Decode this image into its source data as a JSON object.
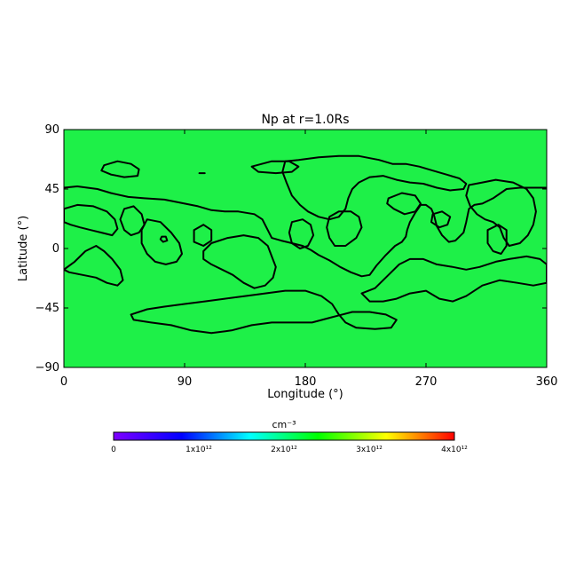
{
  "chart_data": {
    "type": "heatmap",
    "title": "Np at r=1.0Rs",
    "xlabel": "Longitude (°)",
    "ylabel": "Latitude (°)",
    "xlim": [
      0,
      360
    ],
    "ylim": [
      -90,
      90
    ],
    "x_ticks": [
      0,
      90,
      180,
      270,
      360
    ],
    "y_ticks": [
      -90,
      -45,
      0,
      45,
      90
    ],
    "field_color": "#1ef048",
    "contour_color": "#000000",
    "contours": [
      {
        "name": "north-belt",
        "closed": false,
        "points": [
          [
            0,
            46
          ],
          [
            10,
            47
          ],
          [
            25,
            45
          ],
          [
            35,
            42
          ],
          [
            48,
            39
          ],
          [
            60,
            38
          ],
          [
            75,
            37
          ],
          [
            90,
            34
          ],
          [
            100,
            32
          ],
          [
            110,
            29
          ],
          [
            120,
            28
          ],
          [
            130,
            28
          ],
          [
            142,
            26
          ],
          [
            148,
            22
          ],
          [
            152,
            14
          ],
          [
            155,
            8
          ],
          [
            162,
            6
          ],
          [
            170,
            4
          ],
          [
            178,
            2
          ],
          [
            184,
            -1
          ],
          [
            190,
            -5
          ],
          [
            198,
            -9
          ],
          [
            206,
            -14
          ],
          [
            214,
            -18
          ],
          [
            222,
            -21
          ],
          [
            228,
            -20
          ],
          [
            233,
            -13
          ],
          [
            240,
            -5
          ],
          [
            247,
            2
          ],
          [
            252,
            5
          ],
          [
            255,
            9
          ],
          [
            256,
            14
          ],
          [
            258,
            20
          ],
          [
            262,
            27
          ],
          [
            266,
            33
          ],
          [
            270,
            33
          ],
          [
            274,
            30
          ],
          [
            276,
            25
          ],
          [
            278,
            17
          ],
          [
            282,
            10
          ],
          [
            287,
            5
          ],
          [
            292,
            6
          ],
          [
            298,
            12
          ],
          [
            300,
            20
          ],
          [
            302,
            30
          ],
          [
            306,
            33
          ],
          [
            312,
            34
          ],
          [
            320,
            38
          ],
          [
            330,
            45
          ],
          [
            340,
            46
          ],
          [
            350,
            46
          ],
          [
            360,
            46
          ]
        ]
      },
      {
        "name": "north-cap",
        "closed": true,
        "points": [
          [
            165,
            66
          ],
          [
            175,
            67
          ],
          [
            190,
            69
          ],
          [
            205,
            70
          ],
          [
            220,
            70
          ],
          [
            235,
            67
          ],
          [
            245,
            64
          ],
          [
            255,
            64
          ],
          [
            265,
            62
          ],
          [
            275,
            59
          ],
          [
            285,
            56
          ],
          [
            295,
            53
          ],
          [
            300,
            49
          ],
          [
            298,
            45
          ],
          [
            288,
            44
          ],
          [
            278,
            46
          ],
          [
            268,
            49
          ],
          [
            258,
            50
          ],
          [
            248,
            52
          ],
          [
            238,
            55
          ],
          [
            228,
            54
          ],
          [
            220,
            50
          ],
          [
            215,
            45
          ],
          [
            212,
            38
          ],
          [
            210,
            30
          ],
          [
            205,
            24
          ],
          [
            198,
            22
          ],
          [
            190,
            24
          ],
          [
            182,
            28
          ],
          [
            176,
            33
          ],
          [
            170,
            40
          ],
          [
            166,
            50
          ],
          [
            163,
            58
          ]
        ]
      },
      {
        "name": "ne-loop",
        "closed": true,
        "points": [
          [
            302,
            48
          ],
          [
            312,
            50
          ],
          [
            322,
            52
          ],
          [
            335,
            50
          ],
          [
            345,
            45
          ],
          [
            350,
            38
          ],
          [
            352,
            28
          ],
          [
            350,
            18
          ],
          [
            346,
            10
          ],
          [
            340,
            4
          ],
          [
            332,
            2
          ],
          [
            328,
            8
          ],
          [
            325,
            16
          ],
          [
            320,
            20
          ],
          [
            314,
            22
          ],
          [
            308,
            26
          ],
          [
            303,
            32
          ],
          [
            300,
            40
          ]
        ]
      },
      {
        "name": "nw-blob",
        "closed": true,
        "points": [
          [
            30,
            63
          ],
          [
            40,
            66
          ],
          [
            50,
            64
          ],
          [
            56,
            60
          ],
          [
            55,
            55
          ],
          [
            45,
            54
          ],
          [
            35,
            56
          ],
          [
            28,
            59
          ]
        ]
      },
      {
        "name": "ne-wedge",
        "closed": true,
        "points": [
          [
            140,
            62
          ],
          [
            155,
            66
          ],
          [
            168,
            66
          ],
          [
            175,
            62
          ],
          [
            170,
            58
          ],
          [
            158,
            57
          ],
          [
            145,
            58
          ]
        ]
      },
      {
        "name": "w-cluster-a",
        "closed": true,
        "points": [
          [
            0,
            30
          ],
          [
            10,
            33
          ],
          [
            22,
            32
          ],
          [
            32,
            28
          ],
          [
            38,
            22
          ],
          [
            40,
            15
          ],
          [
            36,
            10
          ],
          [
            28,
            12
          ],
          [
            20,
            14
          ],
          [
            12,
            16
          ],
          [
            5,
            18
          ],
          [
            0,
            20
          ]
        ]
      },
      {
        "name": "w-cluster-b",
        "closed": true,
        "points": [
          [
            45,
            30
          ],
          [
            52,
            32
          ],
          [
            58,
            26
          ],
          [
            60,
            18
          ],
          [
            56,
            12
          ],
          [
            50,
            10
          ],
          [
            45,
            14
          ],
          [
            42,
            22
          ]
        ]
      },
      {
        "name": "w-cluster-c",
        "closed": true,
        "points": [
          [
            62,
            22
          ],
          [
            72,
            20
          ],
          [
            80,
            12
          ],
          [
            86,
            4
          ],
          [
            88,
            -4
          ],
          [
            84,
            -10
          ],
          [
            76,
            -12
          ],
          [
            68,
            -10
          ],
          [
            62,
            -4
          ],
          [
            58,
            4
          ],
          [
            58,
            14
          ]
        ]
      },
      {
        "name": "w-blob-d",
        "closed": true,
        "points": [
          [
            97,
            14
          ],
          [
            104,
            18
          ],
          [
            110,
            14
          ],
          [
            110,
            6
          ],
          [
            104,
            2
          ],
          [
            97,
            5
          ]
        ]
      },
      {
        "name": "sw-loop",
        "closed": true,
        "points": [
          [
            0,
            -16
          ],
          [
            8,
            -10
          ],
          [
            16,
            -2
          ],
          [
            24,
            2
          ],
          [
            30,
            -2
          ],
          [
            36,
            -8
          ],
          [
            42,
            -16
          ],
          [
            44,
            -24
          ],
          [
            40,
            -28
          ],
          [
            32,
            -26
          ],
          [
            24,
            -22
          ],
          [
            14,
            -20
          ],
          [
            4,
            -18
          ]
        ]
      },
      {
        "name": "center-lobe",
        "closed": true,
        "points": [
          [
            110,
            4
          ],
          [
            122,
            8
          ],
          [
            134,
            10
          ],
          [
            145,
            8
          ],
          [
            152,
            2
          ],
          [
            155,
            -6
          ],
          [
            158,
            -14
          ],
          [
            156,
            -22
          ],
          [
            150,
            -28
          ],
          [
            142,
            -30
          ],
          [
            134,
            -26
          ],
          [
            126,
            -20
          ],
          [
            118,
            -16
          ],
          [
            110,
            -12
          ],
          [
            104,
            -8
          ],
          [
            104,
            -2
          ]
        ]
      },
      {
        "name": "center-blob",
        "closed": true,
        "points": [
          [
            170,
            20
          ],
          [
            178,
            22
          ],
          [
            184,
            18
          ],
          [
            186,
            10
          ],
          [
            182,
            2
          ],
          [
            176,
            0
          ],
          [
            170,
            4
          ],
          [
            168,
            12
          ]
        ]
      },
      {
        "name": "mid-blob",
        "closed": true,
        "points": [
          [
            198,
            24
          ],
          [
            205,
            28
          ],
          [
            214,
            28
          ],
          [
            220,
            24
          ],
          [
            222,
            16
          ],
          [
            218,
            8
          ],
          [
            210,
            2
          ],
          [
            202,
            2
          ],
          [
            198,
            8
          ],
          [
            196,
            16
          ]
        ]
      },
      {
        "name": "e-loop-a",
        "closed": true,
        "points": [
          [
            242,
            38
          ],
          [
            252,
            42
          ],
          [
            262,
            40
          ],
          [
            266,
            34
          ],
          [
            262,
            28
          ],
          [
            254,
            26
          ],
          [
            246,
            30
          ],
          [
            241,
            34
          ]
        ]
      },
      {
        "name": "e-loop-b",
        "closed": true,
        "points": [
          [
            275,
            26
          ],
          [
            282,
            28
          ],
          [
            288,
            24
          ],
          [
            286,
            18
          ],
          [
            280,
            16
          ],
          [
            274,
            20
          ]
        ]
      },
      {
        "name": "e-blob-c",
        "closed": true,
        "points": [
          [
            316,
            14
          ],
          [
            324,
            18
          ],
          [
            330,
            14
          ],
          [
            330,
            2
          ],
          [
            326,
            -4
          ],
          [
            320,
            -2
          ],
          [
            316,
            4
          ]
        ]
      },
      {
        "name": "se-band",
        "closed": true,
        "points": [
          [
            222,
            -34
          ],
          [
            232,
            -30
          ],
          [
            242,
            -20
          ],
          [
            250,
            -12
          ],
          [
            258,
            -8
          ],
          [
            268,
            -8
          ],
          [
            278,
            -12
          ],
          [
            290,
            -14
          ],
          [
            300,
            -16
          ],
          [
            310,
            -14
          ],
          [
            322,
            -10
          ],
          [
            332,
            -8
          ],
          [
            345,
            -6
          ],
          [
            355,
            -8
          ],
          [
            360,
            -12
          ],
          [
            360,
            -26
          ],
          [
            350,
            -28
          ],
          [
            338,
            -26
          ],
          [
            325,
            -24
          ],
          [
            312,
            -28
          ],
          [
            300,
            -36
          ],
          [
            290,
            -40
          ],
          [
            280,
            -38
          ],
          [
            270,
            -32
          ],
          [
            258,
            -34
          ],
          [
            248,
            -38
          ],
          [
            238,
            -40
          ],
          [
            228,
            -40
          ]
        ]
      },
      {
        "name": "south-belt",
        "closed": true,
        "points": [
          [
            50,
            -50
          ],
          [
            62,
            -46
          ],
          [
            75,
            -44
          ],
          [
            90,
            -42
          ],
          [
            105,
            -40
          ],
          [
            120,
            -38
          ],
          [
            135,
            -36
          ],
          [
            150,
            -34
          ],
          [
            165,
            -32
          ],
          [
            180,
            -32
          ],
          [
            192,
            -36
          ],
          [
            200,
            -42
          ],
          [
            205,
            -50
          ],
          [
            210,
            -56
          ],
          [
            218,
            -60
          ],
          [
            232,
            -61
          ],
          [
            244,
            -60
          ],
          [
            248,
            -54
          ],
          [
            240,
            -50
          ],
          [
            228,
            -48
          ],
          [
            215,
            -48
          ],
          [
            200,
            -52
          ],
          [
            185,
            -56
          ],
          [
            170,
            -56
          ],
          [
            155,
            -56
          ],
          [
            140,
            -58
          ],
          [
            125,
            -62
          ],
          [
            110,
            -64
          ],
          [
            95,
            -62
          ],
          [
            80,
            -58
          ],
          [
            65,
            -56
          ],
          [
            52,
            -54
          ]
        ]
      },
      {
        "name": "dot-west",
        "closed": true,
        "points": [
          [
            73,
            9
          ],
          [
            76,
            9
          ],
          [
            77,
            6
          ],
          [
            74,
            5
          ],
          [
            72,
            7
          ]
        ]
      },
      {
        "name": "tick-north",
        "closed": false,
        "points": [
          [
            101,
            57
          ],
          [
            105,
            57
          ]
        ]
      }
    ],
    "colorbar": {
      "label": "cm⁻³",
      "min": 0,
      "max": 4000000000000.0,
      "tick_labels": [
        "0",
        "1x10¹²",
        "2x10¹²",
        "3x10¹²",
        "4x10¹²"
      ],
      "colors": [
        "#7f00ff",
        "#0000ff",
        "#00ffff",
        "#00ff00",
        "#ffff00",
        "#ff0000"
      ]
    }
  }
}
